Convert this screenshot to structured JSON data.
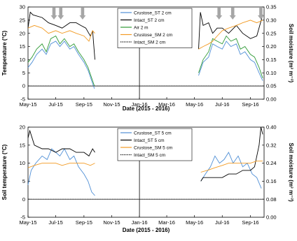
{
  "chart_data": [
    {
      "type": "line",
      "xlabel": "Date (2015 - 2016)",
      "ylabel": "Temperature (°C)",
      "y2label": "Soil moisture (m³ m⁻³)",
      "xlim": [
        "2015-05-01",
        "2016-10-01"
      ],
      "ylim": [
        -5,
        30
      ],
      "y2lim": [
        0.0,
        0.35
      ],
      "xticks": [
        "May-15",
        "Jul-15",
        "Sep-15",
        "Nov-15",
        "Jan-16",
        "Mar-16",
        "May-16",
        "Jul-16",
        "Sep-16"
      ],
      "yticks": [
        -5,
        0,
        5,
        10,
        15,
        20,
        25,
        30
      ],
      "y2ticks": [
        "0.00",
        "0.05",
        "0.10",
        "0.15",
        "0.20",
        "0.25",
        "0.30",
        "0.35"
      ],
      "legend_position": "top-center",
      "grid": false,
      "vertical_line_at": "2016-01-01",
      "zero_line": true,
      "arrows_at": [
        "2015-06-27",
        "2015-07-12",
        "2015-08-29",
        "2016-06-24",
        "2016-07-24",
        "2016-09-24"
      ],
      "series": [
        {
          "name": "Crustose_ST 2 cm",
          "color": "#4f8fd6",
          "axis": "left",
          "style": "solid",
          "segments": [
            {
              "x": [
                "2015-05-01",
                "2015-05-10",
                "2015-05-20",
                "2015-06-01",
                "2015-06-10",
                "2015-06-20",
                "2015-07-01",
                "2015-07-10",
                "2015-07-20",
                "2015-08-01",
                "2015-08-10",
                "2015-08-20",
                "2015-09-01",
                "2015-09-10",
                "2015-09-18",
                "2015-09-24"
              ],
              "y": [
                7,
                9,
                12,
                14,
                12,
                16,
                17,
                15,
                17,
                14,
                15,
                12,
                9,
                6,
                2,
                -1
              ]
            },
            {
              "x": [
                "2016-05-10",
                "2016-05-20",
                "2016-06-01",
                "2016-06-10",
                "2016-06-20",
                "2016-07-01",
                "2016-07-10",
                "2016-07-20",
                "2016-08-01",
                "2016-08-10",
                "2016-08-20",
                "2016-09-01",
                "2016-09-10",
                "2016-09-20",
                "2016-09-28"
              ],
              "y": [
                4,
                9,
                11,
                16,
                15,
                14,
                17,
                15,
                16,
                12,
                13,
                10,
                9,
                5,
                2
              ]
            }
          ]
        },
        {
          "name": "Intact_ST 2 cm",
          "color": "#000000",
          "axis": "left",
          "style": "solid",
          "segments": [
            {
              "x": [
                "2015-05-01",
                "2015-05-06",
                "2015-05-12",
                "2015-06-01",
                "2015-06-15",
                "2015-07-01",
                "2015-07-15",
                "2015-08-01",
                "2015-08-15",
                "2015-08-25",
                "2015-09-05",
                "2015-09-15",
                "2015-09-20",
                "2015-09-25"
              ],
              "y": [
                22,
                28,
                27,
                26,
                24,
                23,
                22,
                24,
                24,
                23,
                22,
                19,
                21,
                10
              ]
            },
            {
              "x": [
                "2016-05-10",
                "2016-05-14",
                "2016-05-20",
                "2016-06-01",
                "2016-06-10",
                "2016-06-20",
                "2016-07-01",
                "2016-07-15",
                "2016-08-01",
                "2016-08-15",
                "2016-09-01",
                "2016-09-15",
                "2016-09-28"
              ],
              "y": [
                14,
                28,
                23,
                24,
                20,
                22,
                22,
                20,
                23,
                20,
                18,
                19,
                27
              ]
            }
          ]
        },
        {
          "name": "Air 2 m",
          "color": "#2e9a35",
          "axis": "left",
          "style": "solid",
          "segments": [
            {
              "x": [
                "2015-05-01",
                "2015-05-10",
                "2015-05-20",
                "2015-06-01",
                "2015-06-10",
                "2015-06-20",
                "2015-07-01",
                "2015-07-10",
                "2015-07-20",
                "2015-08-01",
                "2015-08-10",
                "2015-08-20",
                "2015-09-01",
                "2015-09-10",
                "2015-09-18",
                "2015-09-24"
              ],
              "y": [
                9,
                11,
                14,
                16,
                13,
                18,
                19,
                16,
                18,
                15,
                16,
                13,
                10,
                7,
                3,
                0
              ]
            },
            {
              "x": [
                "2016-05-10",
                "2016-05-20",
                "2016-06-01",
                "2016-06-10",
                "2016-06-20",
                "2016-07-01",
                "2016-07-10",
                "2016-07-20",
                "2016-08-01",
                "2016-08-10",
                "2016-08-20",
                "2016-09-01",
                "2016-09-10",
                "2016-09-20",
                "2016-09-28"
              ],
              "y": [
                5,
                10,
                13,
                18,
                17,
                16,
                19,
                17,
                18,
                14,
                15,
                12,
                11,
                7,
                3
              ]
            }
          ]
        },
        {
          "name": "Crustose_SM 2 cm",
          "color": "#f29b24",
          "axis": "right",
          "style": "solid",
          "segments": [
            {
              "x": [
                "2015-05-01",
                "2015-05-15",
                "2015-06-01",
                "2015-06-15",
                "2015-07-01",
                "2015-07-15",
                "2015-08-01",
                "2015-08-15",
                "2015-09-01",
                "2015-09-12",
                "2015-09-20",
                "2015-09-25"
              ],
              "y": [
                0.27,
                0.28,
                0.27,
                0.25,
                0.26,
                0.25,
                0.26,
                0.25,
                0.24,
                0.22,
                0.26,
                0.25
              ]
            },
            {
              "x": [
                "2016-05-10",
                "2016-05-20",
                "2016-06-01",
                "2016-06-10",
                "2016-06-20",
                "2016-07-01",
                "2016-07-15",
                "2016-08-01",
                "2016-08-15",
                "2016-09-01",
                "2016-09-15",
                "2016-09-28"
              ],
              "y": [
                0.19,
                0.2,
                0.21,
                0.22,
                0.24,
                0.26,
                0.27,
                0.28,
                0.29,
                0.3,
                0.29,
                0.3
              ]
            }
          ]
        },
        {
          "name": "Intact_SM 2 cm",
          "color": "#000000",
          "axis": "right",
          "style": "dotted",
          "segments": [
            {
              "x": [
                "2015-05-01",
                "2016-10-01"
              ],
              "y": [
                0.05,
                0.05
              ]
            }
          ]
        }
      ]
    },
    {
      "type": "line",
      "xlabel": "Date (2015 - 2016)",
      "ylabel": "Soil temperature (°C)",
      "y2label": "Soil moisture (m³ m⁻³)",
      "xlim": [
        "2015-05-01",
        "2016-10-01"
      ],
      "ylim": [
        -5,
        20
      ],
      "y2lim": [
        0.0,
        0.4
      ],
      "xticks": [
        "May-15",
        "Jul-15",
        "Sep-15",
        "Nov-15",
        "Jan-16",
        "Mar-16",
        "May-16",
        "Jul-16",
        "Sep-16"
      ],
      "yticks": [
        -5,
        0,
        5,
        10,
        15,
        20
      ],
      "y2ticks": [
        "0.00",
        "0.08",
        "0.16",
        "0.24",
        "0.32",
        "0.40"
      ],
      "legend_position": "top-center",
      "grid": false,
      "vertical_line_at": "2016-01-01",
      "zero_line": true,
      "series": [
        {
          "name": "Crustose_ST 5 cm",
          "color": "#4f8fd6",
          "axis": "left",
          "style": "solid",
          "segments": [
            {
              "x": [
                "2015-05-01",
                "2015-05-08",
                "2015-05-18",
                "2015-06-01",
                "2015-06-12",
                "2015-06-22",
                "2015-07-01",
                "2015-07-10",
                "2015-07-20",
                "2015-08-01",
                "2015-08-10",
                "2015-08-20",
                "2015-09-01",
                "2015-09-10",
                "2015-09-18",
                "2015-09-25"
              ],
              "y": [
                4,
                8,
                10,
                12,
                11,
                14,
                13,
                12,
                14,
                11,
                12,
                9,
                7,
                5,
                2,
                1
              ]
            },
            {
              "x": [
                "2016-05-15",
                "2016-05-25",
                "2016-06-05",
                "2016-06-15",
                "2016-06-25",
                "2016-07-05",
                "2016-07-15",
                "2016-07-25",
                "2016-08-05",
                "2016-08-15",
                "2016-08-25",
                "2016-09-05",
                "2016-09-15",
                "2016-09-25"
              ],
              "y": [
                5,
                7,
                9,
                12,
                10,
                11,
                13,
                10,
                12,
                9,
                10,
                7,
                6,
                3
              ]
            }
          ]
        },
        {
          "name": "Intact_ST 5 cm",
          "color": "#000000",
          "axis": "left",
          "style": "solid",
          "segments": [
            {
              "x": [
                "2015-05-01",
                "2015-05-05",
                "2015-05-15",
                "2015-06-01",
                "2015-06-15",
                "2015-07-01",
                "2015-07-15",
                "2015-08-01",
                "2015-08-15",
                "2015-09-01",
                "2015-09-12",
                "2015-09-20",
                "2015-09-25"
              ],
              "y": [
                17,
                19,
                15,
                14,
                14,
                13,
                14,
                14,
                13,
                13,
                12,
                14,
                13
              ]
            },
            {
              "x": [
                "2016-05-15",
                "2016-05-20",
                "2016-06-01",
                "2016-06-15",
                "2016-07-01",
                "2016-07-15",
                "2016-08-01",
                "2016-08-15",
                "2016-09-01",
                "2016-09-10",
                "2016-09-20",
                "2016-09-24",
                "2016-09-28"
              ],
              "y": [
                5,
                6,
                6,
                6,
                6,
                7,
                7,
                8,
                8,
                9,
                15,
                20,
                18
              ]
            }
          ]
        },
        {
          "name": "Crustose_SM 5 cm",
          "color": "#f29b24",
          "axis": "right",
          "style": "solid",
          "segments": [
            {
              "x": [
                "2015-05-01",
                "2015-05-15",
                "2015-06-01",
                "2015-06-15",
                "2015-07-01",
                "2015-07-15",
                "2015-08-01",
                "2015-08-15",
                "2015-09-01",
                "2015-09-15",
                "2015-09-25"
              ],
              "y": [
                0.22,
                0.23,
                0.24,
                0.24,
                0.24,
                0.23,
                0.24,
                0.24,
                0.24,
                0.23,
                0.24
              ]
            },
            {
              "x": [
                "2016-05-15",
                "2016-06-01",
                "2016-06-15",
                "2016-07-01",
                "2016-07-15",
                "2016-08-01",
                "2016-08-15",
                "2016-09-01",
                "2016-09-15",
                "2016-09-28"
              ],
              "y": [
                0.2,
                0.21,
                0.22,
                0.23,
                0.24,
                0.24,
                0.24,
                0.24,
                0.25,
                0.25
              ]
            }
          ]
        },
        {
          "name": "Intact_SM 5 cm",
          "color": "#000000",
          "axis": "right",
          "style": "dotted",
          "segments": [
            {
              "x": [
                "2015-05-01",
                "2016-10-01"
              ],
              "y": [
                0.08,
                0.08
              ]
            }
          ]
        }
      ]
    }
  ]
}
